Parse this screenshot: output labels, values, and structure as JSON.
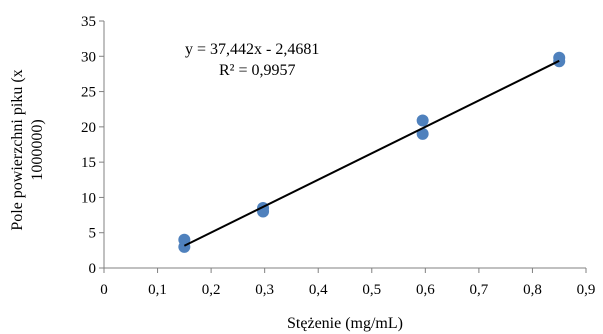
{
  "chart_data": {
    "type": "scatter",
    "xlabel": "Stężenie (mg/mL)",
    "ylabel_lines": [
      "Pole powierzchni piku (x",
      "1000000)"
    ],
    "xlim": [
      0,
      0.9
    ],
    "ylim": [
      0,
      35
    ],
    "x_ticks": [
      "0",
      "0,1",
      "0,2",
      "0,3",
      "0,4",
      "0,5",
      "0,6",
      "0,7",
      "0,8",
      "0,9"
    ],
    "y_ticks": [
      "0",
      "5",
      "10",
      "15",
      "20",
      "25",
      "30",
      "35"
    ],
    "grid": false,
    "legend": "none",
    "series": [
      {
        "points": [
          {
            "x": 0.15,
            "y": 4.0
          },
          {
            "x": 0.15,
            "y": 3.0
          },
          {
            "x": 0.297,
            "y": 8.5
          },
          {
            "x": 0.297,
            "y": 8.0
          },
          {
            "x": 0.595,
            "y": 20.9
          },
          {
            "x": 0.595,
            "y": 19.0
          },
          {
            "x": 0.85,
            "y": 29.8
          },
          {
            "x": 0.85,
            "y": 29.3
          }
        ],
        "color": "#4f81bd"
      }
    ],
    "trendline": {
      "slope": 37.442,
      "intercept": -2.4681,
      "x_range": [
        0.15,
        0.85
      ],
      "color": "#000000"
    },
    "annotations": [
      "y = 37,442x - 2,4681",
      "R² = 0,9957"
    ]
  }
}
